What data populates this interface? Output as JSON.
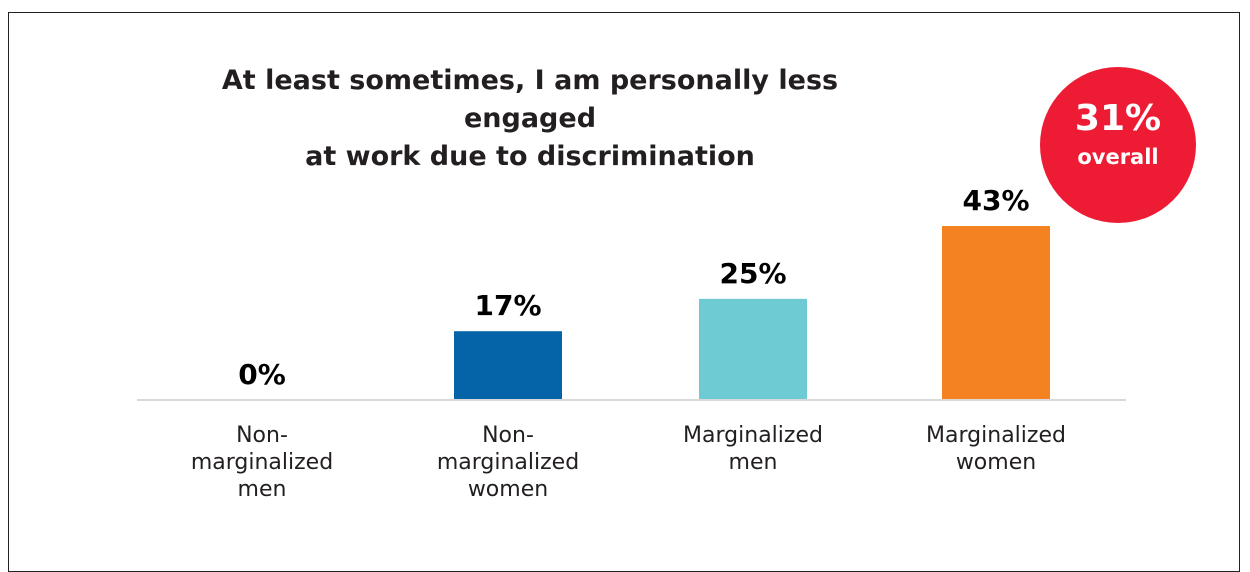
{
  "chart_data": {
    "type": "bar",
    "title": "At least sometimes, I am personally less engaged at work due to discrimination",
    "title_lines": [
      "At least sometimes, I am personally less engaged",
      "at work due to discrimination"
    ],
    "categories": [
      "Non-marginalized men",
      "Non-marginalized women",
      "Marginalized men",
      "Marginalized women"
    ],
    "category_lines": [
      [
        "Non-",
        "marginalized",
        "men"
      ],
      [
        "Non-",
        "marginalized",
        "women"
      ],
      [
        "Marginalized",
        "men"
      ],
      [
        "Marginalized",
        "women"
      ]
    ],
    "values": [
      0,
      17,
      25,
      43
    ],
    "value_labels": [
      "0%",
      "17%",
      "25%",
      "43%"
    ],
    "colors": [
      "#0563a8",
      "#0563a8",
      "#6ecad3",
      "#f58220"
    ],
    "ylim": [
      0,
      43
    ],
    "xlabel": "",
    "ylabel": "",
    "grid": false,
    "legend": "none"
  },
  "callout": {
    "value": "31%",
    "label": "overall",
    "color": "#ed1c34"
  }
}
